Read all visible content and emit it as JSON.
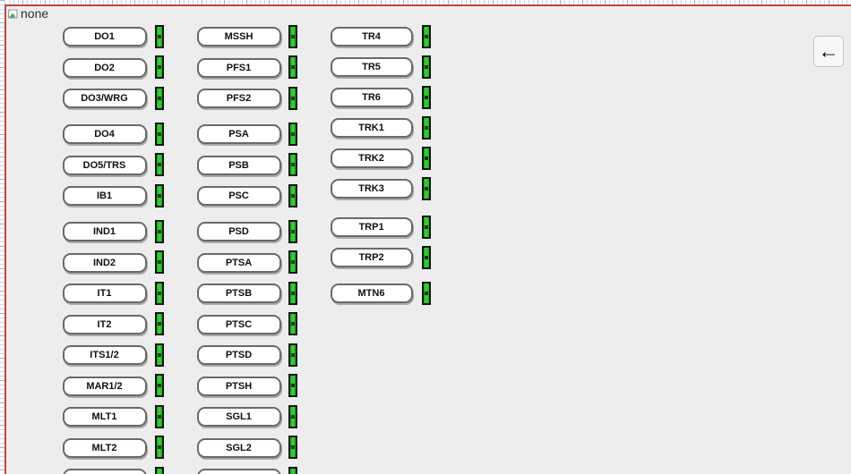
{
  "window": {
    "missing_image_alt": "none"
  },
  "toolbar": {
    "back_label": "←"
  },
  "panel": {
    "columns": [
      {
        "id": "column-1",
        "groups": [
          [
            "DO1",
            "DO2",
            "DO3/WRG"
          ],
          [
            "DO4",
            "DO5/TRS",
            "IB1"
          ],
          [
            "IND1",
            "IND2",
            "IT1",
            "IT2",
            "ITS1/2",
            "MAR1/2",
            "MLT1",
            "MLT2",
            ""
          ]
        ]
      },
      {
        "id": "column-2",
        "groups": [
          [
            "MSSH",
            "PFS1",
            "PFS2"
          ],
          [
            "PSA",
            "PSB",
            "PSC"
          ],
          [
            "PSD",
            "PTSA",
            "PTSB",
            "PTSC",
            "PTSD",
            "PTSH",
            "SGL1",
            "SGL2",
            ""
          ]
        ]
      },
      {
        "id": "column-3",
        "groups": [
          [
            "TR4",
            "TR5",
            "TR6"
          ],
          [
            "TRK1",
            "TRK2",
            "TRK3"
          ],
          [
            "TRP1",
            "TRP2"
          ],
          [
            "MTN6"
          ]
        ]
      }
    ],
    "led": {
      "state": "on",
      "on_color": "#2dc92d",
      "border_color": "#151515"
    }
  },
  "colors": {
    "panel_bg": "#ededed",
    "frame": "#c14442",
    "button_border": "#696969",
    "ruler_tick": "#a9c7e8"
  }
}
